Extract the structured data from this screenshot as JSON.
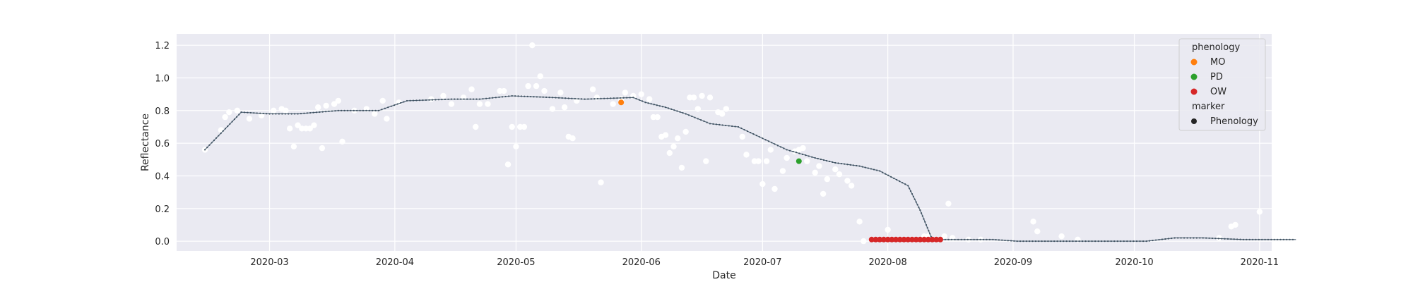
{
  "chart_data": {
    "type": "scatter",
    "title": "",
    "xlabel": "Date",
    "ylabel": "Reflectance",
    "xlim": [
      "2020-02-07",
      "2020-11-04"
    ],
    "ylim": [
      -0.06,
      1.27
    ],
    "x_ticks": [
      "2020-03-01",
      "2020-04-01",
      "2020-05-01",
      "2020-06-01",
      "2020-07-01",
      "2020-08-01",
      "2020-09-01",
      "2020-10-01",
      "2020-11-01"
    ],
    "x_tick_labels": [
      "2020-03",
      "2020-04",
      "2020-05",
      "2020-06",
      "2020-07",
      "2020-08",
      "2020-09",
      "2020-10",
      "2020-11"
    ],
    "y_ticks": [
      0.0,
      0.2,
      0.4,
      0.6,
      0.8,
      1.0,
      1.2
    ],
    "y_tick_labels": [
      "0.0",
      "0.2",
      "0.4",
      "0.6",
      "0.8",
      "1.0",
      "1.2"
    ],
    "grid": true,
    "background": "#eaeaf2",
    "legend": {
      "position": "top-right",
      "title1": "phenology",
      "items": [
        {
          "label": "MO",
          "color": "#ff7f0e"
        },
        {
          "label": "PD",
          "color": "#2ca02c"
        },
        {
          "label": "OW",
          "color": "#d62728"
        }
      ],
      "title2": "marker",
      "marker_item": {
        "label": "Phenology",
        "color": "#262626"
      }
    },
    "series": [
      {
        "kind": "observations",
        "color": "#ffffff",
        "points": [
          [
            "2020-02-14",
            0.56
          ],
          [
            "2020-02-18",
            0.68
          ],
          [
            "2020-02-19",
            0.76
          ],
          [
            "2020-02-20",
            0.79
          ],
          [
            "2020-02-22",
            0.8
          ],
          [
            "2020-02-25",
            0.75
          ],
          [
            "2020-02-28",
            0.77
          ],
          [
            "2020-03-02",
            0.8
          ],
          [
            "2020-03-04",
            0.81
          ],
          [
            "2020-03-05",
            0.8
          ],
          [
            "2020-03-06",
            0.69
          ],
          [
            "2020-03-07",
            0.58
          ],
          [
            "2020-03-08",
            0.71
          ],
          [
            "2020-03-09",
            0.69
          ],
          [
            "2020-03-10",
            0.69
          ],
          [
            "2020-03-11",
            0.69
          ],
          [
            "2020-03-12",
            0.71
          ],
          [
            "2020-03-13",
            0.82
          ],
          [
            "2020-03-14",
            0.57
          ],
          [
            "2020-03-15",
            0.83
          ],
          [
            "2020-03-17",
            0.84
          ],
          [
            "2020-03-18",
            0.86
          ],
          [
            "2020-03-19",
            0.61
          ],
          [
            "2020-03-22",
            0.8
          ],
          [
            "2020-03-25",
            0.81
          ],
          [
            "2020-03-27",
            0.78
          ],
          [
            "2020-03-29",
            0.86
          ],
          [
            "2020-03-30",
            0.75
          ],
          [
            "2020-04-02",
            0.85
          ],
          [
            "2020-04-10",
            0.87
          ],
          [
            "2020-04-13",
            0.89
          ],
          [
            "2020-04-15",
            0.84
          ],
          [
            "2020-04-18",
            0.88
          ],
          [
            "2020-04-20",
            0.93
          ],
          [
            "2020-04-21",
            0.7
          ],
          [
            "2020-04-22",
            0.84
          ],
          [
            "2020-04-24",
            0.84
          ],
          [
            "2020-04-27",
            0.92
          ],
          [
            "2020-04-28",
            0.92
          ],
          [
            "2020-04-29",
            0.47
          ],
          [
            "2020-04-30",
            0.7
          ],
          [
            "2020-05-01",
            0.58
          ],
          [
            "2020-05-02",
            0.7
          ],
          [
            "2020-05-03",
            0.7
          ],
          [
            "2020-05-04",
            0.95
          ],
          [
            "2020-05-05",
            1.2
          ],
          [
            "2020-05-06",
            0.95
          ],
          [
            "2020-05-07",
            1.01
          ],
          [
            "2020-05-08",
            0.92
          ],
          [
            "2020-05-10",
            0.81
          ],
          [
            "2020-05-12",
            0.91
          ],
          [
            "2020-05-13",
            0.82
          ],
          [
            "2020-05-14",
            0.64
          ],
          [
            "2020-05-15",
            0.63
          ],
          [
            "2020-05-16",
            0.86
          ],
          [
            "2020-05-20",
            0.93
          ],
          [
            "2020-05-21",
            0.88
          ],
          [
            "2020-05-22",
            0.36
          ],
          [
            "2020-05-25",
            0.84
          ],
          [
            "2020-05-27",
            0.87
          ],
          [
            "2020-05-28",
            0.91
          ],
          [
            "2020-05-30",
            0.89
          ],
          [
            "2020-06-01",
            0.9
          ],
          [
            "2020-06-03",
            0.87
          ],
          [
            "2020-06-04",
            0.76
          ],
          [
            "2020-06-05",
            0.76
          ],
          [
            "2020-06-06",
            0.64
          ],
          [
            "2020-06-07",
            0.65
          ],
          [
            "2020-06-08",
            0.54
          ],
          [
            "2020-06-09",
            0.58
          ],
          [
            "2020-06-10",
            0.63
          ],
          [
            "2020-06-11",
            0.45
          ],
          [
            "2020-06-12",
            0.67
          ],
          [
            "2020-06-13",
            0.88
          ],
          [
            "2020-06-14",
            0.88
          ],
          [
            "2020-06-15",
            0.81
          ],
          [
            "2020-06-16",
            0.89
          ],
          [
            "2020-06-17",
            0.49
          ],
          [
            "2020-06-18",
            0.88
          ],
          [
            "2020-06-20",
            0.79
          ],
          [
            "2020-06-21",
            0.78
          ],
          [
            "2020-06-22",
            0.81
          ],
          [
            "2020-06-26",
            0.64
          ],
          [
            "2020-06-27",
            0.53
          ],
          [
            "2020-06-29",
            0.49
          ],
          [
            "2020-06-30",
            0.49
          ],
          [
            "2020-07-01",
            0.35
          ],
          [
            "2020-07-02",
            0.49
          ],
          [
            "2020-07-03",
            0.56
          ],
          [
            "2020-07-04",
            0.32
          ],
          [
            "2020-07-06",
            0.43
          ],
          [
            "2020-07-07",
            0.51
          ],
          [
            "2020-07-09",
            0.55
          ],
          [
            "2020-07-10",
            0.56
          ],
          [
            "2020-07-11",
            0.57
          ],
          [
            "2020-07-12",
            0.49
          ],
          [
            "2020-07-14",
            0.42
          ],
          [
            "2020-07-15",
            0.46
          ],
          [
            "2020-07-16",
            0.29
          ],
          [
            "2020-07-17",
            0.38
          ],
          [
            "2020-07-19",
            0.44
          ],
          [
            "2020-07-20",
            0.41
          ],
          [
            "2020-07-22",
            0.37
          ],
          [
            "2020-07-23",
            0.34
          ],
          [
            "2020-07-25",
            0.12
          ],
          [
            "2020-07-26",
            0.0
          ],
          [
            "2020-07-28",
            0.01
          ],
          [
            "2020-08-01",
            0.07
          ],
          [
            "2020-08-07",
            0.01
          ],
          [
            "2020-08-10",
            0.03
          ],
          [
            "2020-08-11",
            0.03
          ],
          [
            "2020-08-13",
            0.01
          ],
          [
            "2020-08-15",
            0.03
          ],
          [
            "2020-08-16",
            0.23
          ],
          [
            "2020-08-17",
            0.02
          ],
          [
            "2020-08-21",
            0.01
          ],
          [
            "2020-08-24",
            0.01
          ],
          [
            "2020-09-06",
            0.12
          ],
          [
            "2020-09-07",
            0.06
          ],
          [
            "2020-09-13",
            0.03
          ],
          [
            "2020-09-17",
            0.01
          ],
          [
            "2020-10-22",
            0.02
          ],
          [
            "2020-10-25",
            0.09
          ],
          [
            "2020-10-26",
            0.1
          ],
          [
            "2020-11-01",
            0.18
          ]
        ]
      },
      {
        "kind": "smoothed",
        "color": "#4c6173",
        "points": [
          [
            "2020-02-14",
            0.56
          ],
          [
            "2020-02-23",
            0.79
          ],
          [
            "2020-03-01",
            0.78
          ],
          [
            "2020-03-08",
            0.78
          ],
          [
            "2020-03-18",
            0.8
          ],
          [
            "2020-03-28",
            0.8
          ],
          [
            "2020-04-04",
            0.86
          ],
          [
            "2020-04-15",
            0.87
          ],
          [
            "2020-04-22",
            0.87
          ],
          [
            "2020-04-30",
            0.89
          ],
          [
            "2020-05-10",
            0.88
          ],
          [
            "2020-05-18",
            0.87
          ],
          [
            "2020-05-30",
            0.88
          ],
          [
            "2020-06-02",
            0.85
          ],
          [
            "2020-06-07",
            0.82
          ],
          [
            "2020-06-12",
            0.78
          ],
          [
            "2020-06-18",
            0.72
          ],
          [
            "2020-06-25",
            0.7
          ],
          [
            "2020-07-01",
            0.63
          ],
          [
            "2020-07-07",
            0.56
          ],
          [
            "2020-07-14",
            0.51
          ],
          [
            "2020-07-19",
            0.48
          ],
          [
            "2020-07-25",
            0.46
          ],
          [
            "2020-07-30",
            0.43
          ],
          [
            "2020-08-06",
            0.34
          ],
          [
            "2020-08-09",
            0.19
          ],
          [
            "2020-08-12",
            0.01
          ],
          [
            "2020-08-20",
            0.01
          ],
          [
            "2020-08-27",
            0.01
          ],
          [
            "2020-09-02",
            0.0
          ],
          [
            "2020-09-15",
            0.0
          ],
          [
            "2020-09-30",
            0.0
          ],
          [
            "2020-10-04",
            0.0
          ],
          [
            "2020-10-11",
            0.02
          ],
          [
            "2020-10-18",
            0.02
          ],
          [
            "2020-10-28",
            0.01
          ],
          [
            "2020-11-10",
            0.01
          ]
        ]
      }
    ],
    "phenology_points": [
      {
        "label": "MO",
        "color": "#ff7f0e",
        "points": [
          [
            "2020-05-27",
            0.85
          ]
        ]
      },
      {
        "label": "PD",
        "color": "#2ca02c",
        "points": [
          [
            "2020-07-10",
            0.49
          ]
        ]
      },
      {
        "label": "OW",
        "color": "#d62728",
        "points": [
          [
            "2020-07-28",
            0.01
          ],
          [
            "2020-07-29",
            0.01
          ],
          [
            "2020-07-30",
            0.01
          ],
          [
            "2020-07-31",
            0.01
          ],
          [
            "2020-08-01",
            0.01
          ],
          [
            "2020-08-02",
            0.01
          ],
          [
            "2020-08-03",
            0.01
          ],
          [
            "2020-08-04",
            0.01
          ],
          [
            "2020-08-05",
            0.01
          ],
          [
            "2020-08-06",
            0.01
          ],
          [
            "2020-08-07",
            0.01
          ],
          [
            "2020-08-08",
            0.01
          ],
          [
            "2020-08-09",
            0.01
          ],
          [
            "2020-08-10",
            0.01
          ],
          [
            "2020-08-11",
            0.01
          ],
          [
            "2020-08-12",
            0.01
          ],
          [
            "2020-08-13",
            0.01
          ],
          [
            "2020-08-14",
            0.01
          ]
        ]
      }
    ]
  }
}
